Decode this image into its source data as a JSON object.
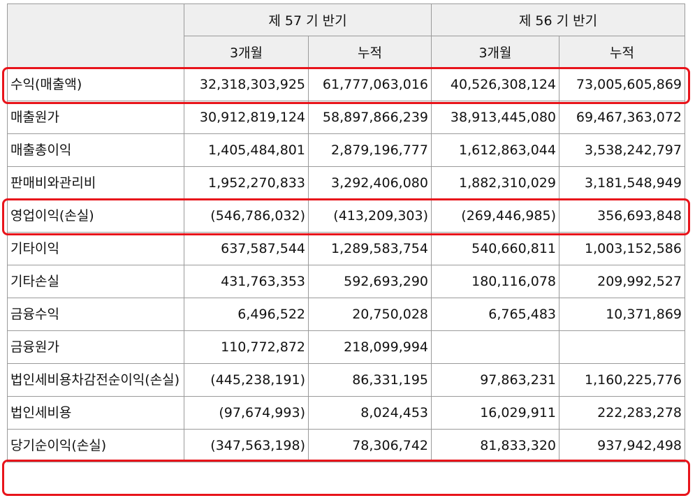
{
  "table": {
    "header": {
      "periods": [
        "제 57 기 반기",
        "제 56 기 반기"
      ],
      "columns": [
        "3개월",
        "누적",
        "3개월",
        "누적"
      ]
    },
    "rows": [
      {
        "label": "수익(매출액)",
        "values": [
          "32,318,303,925",
          "61,777,063,016",
          "40,526,308,124",
          "73,005,605,869"
        ]
      },
      {
        "label": "매출원가",
        "values": [
          "30,912,819,124",
          "58,897,866,239",
          "38,913,445,080",
          "69,467,363,072"
        ]
      },
      {
        "label": "매출총이익",
        "values": [
          "1,405,484,801",
          "2,879,196,777",
          "1,612,863,044",
          "3,538,242,797"
        ]
      },
      {
        "label": "판매비와관리비",
        "values": [
          "1,952,270,833",
          "3,292,406,080",
          "1,882,310,029",
          "3,181,548,949"
        ]
      },
      {
        "label": "영업이익(손실)",
        "values": [
          "(546,786,032)",
          "(413,209,303)",
          "(269,446,985)",
          "356,693,848"
        ]
      },
      {
        "label": "기타이익",
        "values": [
          "637,587,544",
          "1,289,583,754",
          "540,660,811",
          "1,003,152,586"
        ]
      },
      {
        "label": "기타손실",
        "values": [
          "431,763,353",
          "592,693,290",
          "180,116,078",
          "209,992,527"
        ]
      },
      {
        "label": "금융수익",
        "values": [
          "6,496,522",
          "20,750,028",
          "6,765,483",
          "10,371,869"
        ]
      },
      {
        "label": "금융원가",
        "values": [
          "110,772,872",
          "218,099,994"
        ]
      },
      {
        "label": "법인세비용차감전순이익(손실)",
        "values": [
          "(445,238,191)",
          "86,331,195",
          "97,863,231",
          "1,160,225,776"
        ]
      },
      {
        "label": "법인세비용",
        "values": [
          "(97,674,993)",
          "8,024,453",
          "16,029,911",
          "222,283,278"
        ]
      },
      {
        "label": "당기순이익(손실)",
        "values": [
          "(347,563,198)",
          "78,306,742",
          "81,833,320",
          "937,942,498"
        ]
      }
    ]
  }
}
